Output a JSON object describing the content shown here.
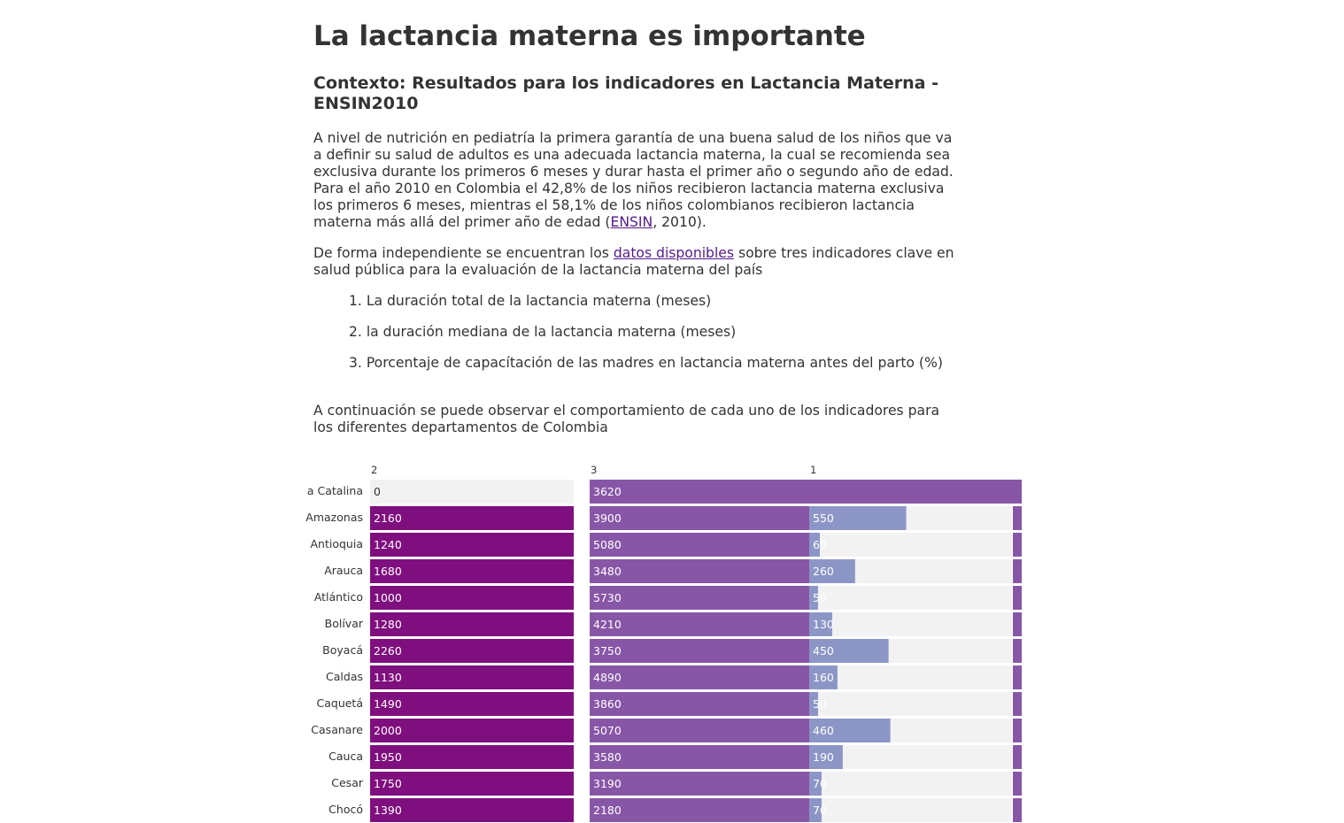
{
  "article": {
    "title": "La lactancia materna es importante",
    "subtitle": "Contexto: Resultados para los indicadores en Lactancia Materna - ENSIN2010",
    "p1_text": "A nivel de nutrición en pediatría la primera garantía de una buena salud de los niños que va a definir su salud de adultos es una adecuada lactancia materna, la cual se recomienda sea exclusiva durante los primeros 6 meses y durar hasta el primer año o segundo año de edad. Para el año 2010 en Colombia el 42,8% de los niños recibieron lactancia materna exclusiva los primeros 6 meses, mientras el 58,1% de los niños colombianos recibieron lactancia materna más allá del primer año de edad (",
    "p1_link": "ENSIN",
    "p1_end": ", 2010).",
    "p2_text": "De forma independiente se encuentran los ",
    "p2_link": "datos disponibles",
    "p2_end": " sobre tres indicadores clave en salud pública para la evaluación de la lactancia materna del país",
    "list": [
      "1. La duración total de la lactancia materna (meses)",
      "2. la duración mediana de la lactancia materna (meses)",
      "3. Porcentaje de capacítación de las madres en lactancia materna antes del parto (%)"
    ],
    "p3_text": "A continuación se puede observar el comportamiento de cada uno de los indicadores para los diferentes departamentos de Colombia"
  },
  "chart_data": {
    "type": "bar",
    "column_headers": [
      "2",
      "3",
      "1"
    ],
    "categories": [
      "a Catalina",
      "Amazonas",
      "Antioquia",
      "Arauca",
      "Atlántico",
      "Bolívar",
      "Boyacá",
      "Caldas",
      "Caquetá",
      "Casanare",
      "Cauca",
      "Cesar",
      "Chocó"
    ],
    "series": [
      {
        "values": [
          0,
          2160,
          1240,
          1680,
          1000,
          1280,
          2260,
          1130,
          1490,
          2000,
          1950,
          1750,
          1390
        ],
        "color": "#7f0f7e",
        "scale_max": 0.0
      },
      {
        "values": [
          3620,
          3900,
          5080,
          3480,
          5730,
          4210,
          3750,
          4890,
          3860,
          5070,
          3580,
          3190,
          2180
        ],
        "color": "#8856a7",
        "scale_max": 0.0
      },
      {
        "values": [
          null,
          550,
          60,
          260,
          50,
          130,
          450,
          160,
          50,
          460,
          190,
          70,
          70
        ],
        "color": "#8c96c6",
        "scale_max": 0.0
      }
    ],
    "colors": {
      "background_track": "#f2f2f2",
      "overflow": "#8856a7",
      "label_light": "#ffffff",
      "label_dark": "#333333"
    }
  }
}
